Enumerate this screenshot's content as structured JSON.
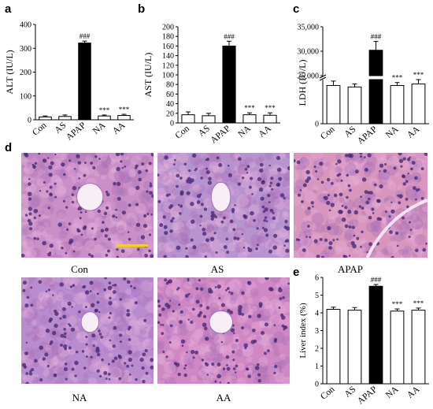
{
  "panel_letters": {
    "a": "a",
    "b": "b",
    "c": "c",
    "d": "d",
    "e": "e"
  },
  "chart_data": [
    {
      "type": "bar",
      "panel": "a",
      "categories": [
        "Con",
        "AS",
        "APAP",
        "NA",
        "AA"
      ],
      "values": [
        12,
        14,
        322,
        16,
        18
      ],
      "errors": [
        4,
        6,
        8,
        4,
        5
      ],
      "fills": [
        "#ffffff",
        "#ffffff",
        "#000000",
        "#ffffff",
        "#ffffff"
      ],
      "annotations": [
        "",
        "",
        "###",
        "***",
        "***"
      ],
      "ylabel": "ALT (IU/L)",
      "ylim": [
        0,
        400
      ],
      "yticks": [
        0,
        100,
        200,
        300,
        400
      ]
    },
    {
      "type": "bar",
      "panel": "b",
      "categories": [
        "Con",
        "AS",
        "APAP",
        "NA",
        "AA"
      ],
      "values": [
        17,
        15,
        160,
        17,
        16
      ],
      "errors": [
        6,
        5,
        10,
        4,
        5
      ],
      "fills": [
        "#ffffff",
        "#ffffff",
        "#000000",
        "#ffffff",
        "#ffffff"
      ],
      "annotations": [
        "",
        "",
        "###",
        "***",
        "***"
      ],
      "ylabel": "AST (IU/L)",
      "ylim": [
        0,
        200
      ],
      "yticks": [
        0,
        20,
        40,
        60,
        80,
        100,
        120,
        140,
        160,
        180,
        200
      ]
    },
    {
      "type": "bar",
      "panel": "c",
      "categories": [
        "Con",
        "AS",
        "APAP",
        "NA",
        "AA"
      ],
      "values": [
        1300,
        1250,
        30200,
        1300,
        1350
      ],
      "errors": [
        150,
        100,
        1800,
        100,
        150
      ],
      "fills": [
        "#ffffff",
        "#ffffff",
        "#000000",
        "#ffffff",
        "#ffffff"
      ],
      "annotations": [
        "",
        "",
        "###",
        "***",
        "***"
      ],
      "ylabel": "LDH (IU/L)",
      "yticks_upper": [
        "25,000",
        "30,000",
        "35,000"
      ],
      "yticks_lower": [
        "0"
      ],
      "axis_break": true
    },
    {
      "type": "bar",
      "panel": "e",
      "categories": [
        "Con",
        "AS",
        "APAP",
        "NA",
        "AA"
      ],
      "values": [
        4.2,
        4.15,
        5.5,
        4.1,
        4.15
      ],
      "errors": [
        0.12,
        0.15,
        0.1,
        0.12,
        0.12
      ],
      "fills": [
        "#ffffff",
        "#ffffff",
        "#000000",
        "#ffffff",
        "#ffffff"
      ],
      "annotations": [
        "",
        "",
        "###",
        "***",
        "***"
      ],
      "ylabel": "Liver index (%)",
      "ylim": [
        0,
        6
      ],
      "yticks": [
        0,
        1,
        2,
        3,
        4,
        5,
        6
      ]
    }
  ],
  "micrographs": [
    {
      "caption": "Con",
      "tint": "#c98fc6",
      "vessel": true
    },
    {
      "caption": "AS",
      "tint": "#b894cf",
      "vessel": true
    },
    {
      "caption": "APAP",
      "tint": "#d896bd",
      "vessel": false
    },
    {
      "caption": "NA",
      "tint": "#b88ccf",
      "vessel": true
    },
    {
      "caption": "AA",
      "tint": "#d088c4",
      "vessel": true
    }
  ]
}
